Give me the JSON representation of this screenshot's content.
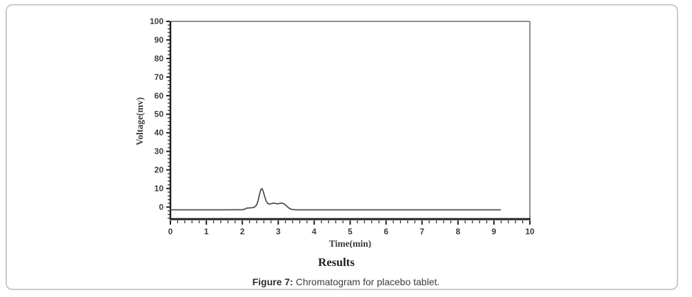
{
  "figure": {
    "section_heading": "Results",
    "caption_prefix": "Figure 7:",
    "caption_text": " Chromatogram for placebo tablet."
  },
  "chart_data": {
    "type": "line",
    "title": "",
    "xlabel": "Time(min)",
    "ylabel": "Voltage(mv)",
    "xlim": [
      0,
      10
    ],
    "ylim": [
      -6.5,
      100
    ],
    "x_major_ticks": [
      0,
      1,
      2,
      3,
      4,
      5,
      6,
      7,
      8,
      9,
      10
    ],
    "x_minor_step": 0.2,
    "y_major_ticks": [
      0,
      10,
      20,
      30,
      40,
      50,
      60,
      70,
      80,
      90,
      100
    ],
    "y_minor_step": 2,
    "grid": false,
    "legend": "none",
    "colors": {
      "trace": "#4f4f4f",
      "box_light": "#8f8f8f",
      "axis_dark": "#1f1f1f",
      "tick_label": "#3b3b3b"
    },
    "series": [
      {
        "name": "placebo-tablet-trace",
        "points": [
          [
            0.0,
            -1.5
          ],
          [
            1.5,
            -1.5
          ],
          [
            2.0,
            -1.4
          ],
          [
            2.06,
            -1.2
          ],
          [
            2.12,
            -0.6
          ],
          [
            2.2,
            -0.45
          ],
          [
            2.28,
            -0.35
          ],
          [
            2.34,
            0.0
          ],
          [
            2.4,
            1.2
          ],
          [
            2.44,
            3.5
          ],
          [
            2.48,
            7.0
          ],
          [
            2.52,
            9.6
          ],
          [
            2.55,
            9.9
          ],
          [
            2.58,
            8.6
          ],
          [
            2.62,
            5.8
          ],
          [
            2.66,
            3.4
          ],
          [
            2.7,
            2.1
          ],
          [
            2.75,
            1.6
          ],
          [
            2.8,
            1.8
          ],
          [
            2.86,
            2.1
          ],
          [
            2.92,
            2.0
          ],
          [
            2.98,
            1.7
          ],
          [
            3.04,
            2.0
          ],
          [
            3.1,
            2.15
          ],
          [
            3.16,
            1.7
          ],
          [
            3.22,
            0.8
          ],
          [
            3.3,
            -0.6
          ],
          [
            3.38,
            -1.3
          ],
          [
            3.5,
            -1.5
          ],
          [
            9.18,
            -1.5
          ]
        ]
      }
    ],
    "annotations": {
      "peak_apex_time_min": 2.53,
      "peak_apex_mv": 9.9,
      "baseline_mv": -1.5,
      "trace_end_time_min": 9.18
    }
  }
}
